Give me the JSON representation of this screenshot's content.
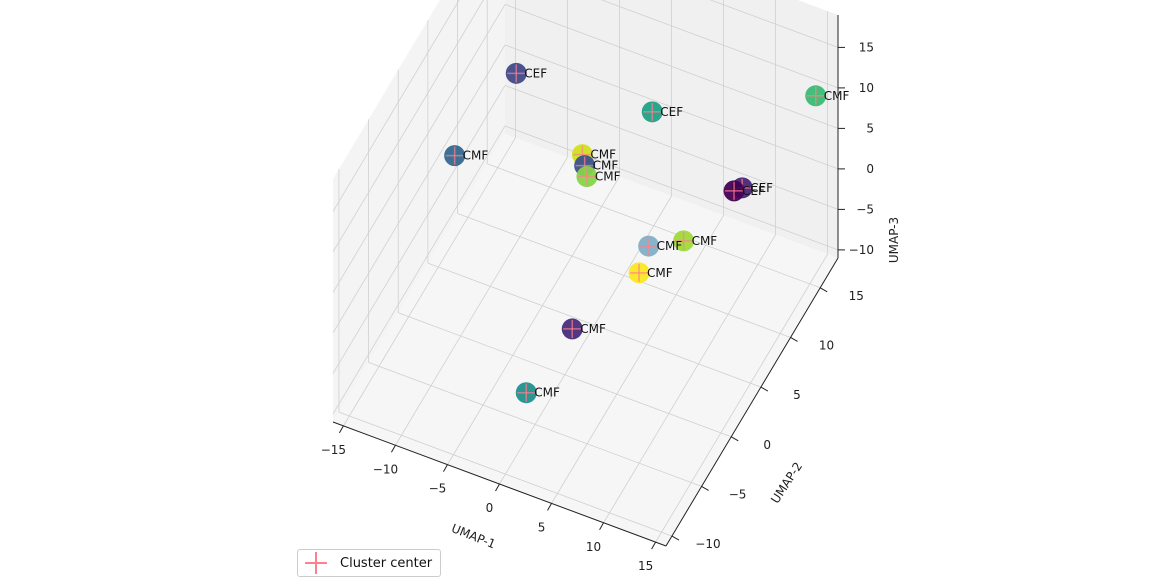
{
  "chart_data": {
    "type": "scatter3d",
    "title": "",
    "xlabel": "UMAP-1",
    "ylabel": "UMAP-2",
    "zlabel": "UMAP-3",
    "xlim": [
      -16,
      16
    ],
    "ylim": [
      -11,
      18
    ],
    "zlim": [
      -11,
      19
    ],
    "xticks": [
      "−15",
      "−10",
      "−5",
      "0",
      "5",
      "10",
      "15"
    ],
    "yticks": [
      "−10",
      "−5",
      "0",
      "5",
      "10",
      "15"
    ],
    "zticks": [
      "−10",
      "−5",
      "0",
      "5",
      "10",
      "15"
    ],
    "grid": true,
    "legend": {
      "position": "bottom-left",
      "label": "Cluster center",
      "marker": "+",
      "color": "#ff7f8c"
    },
    "points": [
      {
        "x": -14.0,
        "y": 6.0,
        "z": 2.0,
        "color": "#31688e",
        "label": "CMF"
      },
      {
        "x": -11.5,
        "y": 12.0,
        "z": 6.0,
        "color": "#3e4a89",
        "label": "CEF"
      },
      {
        "x": -12.0,
        "y": 17.0,
        "z": 13.0,
        "color": "#440154",
        "label": "CEF"
      },
      {
        "x": -4.0,
        "y": 10.0,
        "z": 2.0,
        "color": "#cde11d",
        "label": "CMF"
      },
      {
        "x": -3.5,
        "y": 9.5,
        "z": 1.5,
        "color": "#3b528b",
        "label": "CMF"
      },
      {
        "x": -3.0,
        "y": 9.0,
        "z": 1.0,
        "color": "#86d549",
        "label": "CMF"
      },
      {
        "x": 0.0,
        "y": 17.5,
        "z": 17.0,
        "color": "#4ac16d",
        "label": "CEF"
      },
      {
        "x": 1.0,
        "y": 13.0,
        "z": 6.0,
        "color": "#1fa187",
        "label": "CEF"
      },
      {
        "x": 3.0,
        "y": -4.0,
        "z": 1.0,
        "color": "#472d7b",
        "label": "CMF"
      },
      {
        "x": 2.0,
        "y": -10.0,
        "z": 0.0,
        "color": "#21918c",
        "label": "CMF"
      },
      {
        "x": 6.0,
        "y": 2.0,
        "z": 2.0,
        "color": "#fde725",
        "label": "CMF"
      },
      {
        "x": 5.5,
        "y": 4.5,
        "z": 2.0,
        "color": "#7fb0c8",
        "label": "CMF"
      },
      {
        "x": 8.0,
        "y": 6.0,
        "z": 2.0,
        "color": "#a0da39",
        "label": "CMF"
      },
      {
        "x": 10.0,
        "y": 11.0,
        "z": 3.0,
        "color": "#440154",
        "label": "CEF"
      },
      {
        "x": 10.5,
        "y": 11.5,
        "z": 3.0,
        "color": "#482677",
        "label": "CEF"
      },
      {
        "x": 15.0,
        "y": 16.0,
        "z": 11.0,
        "color": "#3bbb75",
        "label": "CMF"
      }
    ]
  }
}
